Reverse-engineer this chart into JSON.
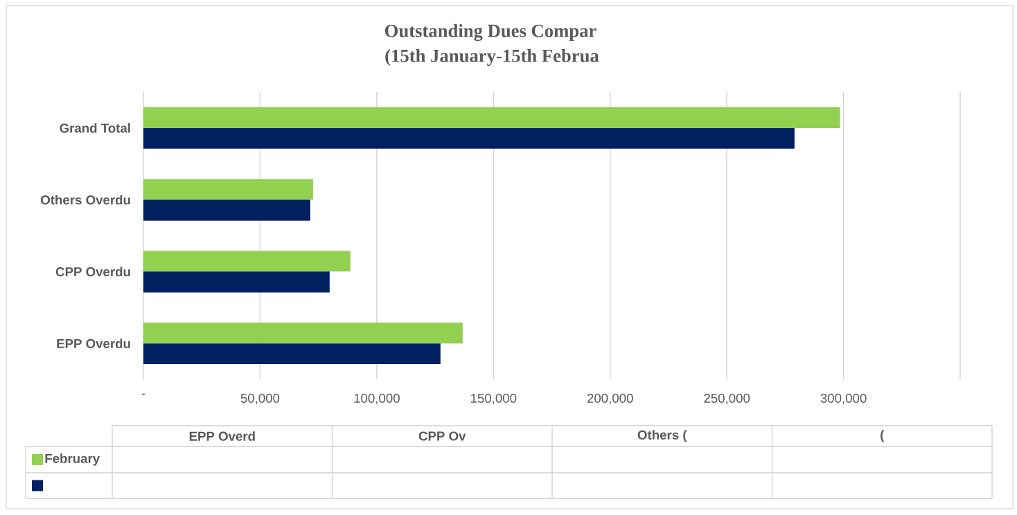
{
  "chart_data": {
    "type": "bar",
    "orientation": "horizontal",
    "title": "Outstanding Dues Compar",
    "subtitle": "(15th January-15th Februa",
    "categories": [
      "Grand Total",
      "Others Overdu",
      "CPP Overdu",
      "EPP Overdu"
    ],
    "series": [
      {
        "name": "February",
        "color": "#92d050",
        "values": [
          298500,
          72700,
          88700,
          136800
        ]
      },
      {
        "color": "#002060",
        "values": [
          279000,
          71500,
          79800,
          127300
        ]
      }
    ],
    "xlim": [
      0,
      350000
    ],
    "xticks": [
      {
        "value": 0,
        "label": "-"
      },
      {
        "value": 50000,
        "label": "50,000"
      },
      {
        "value": 100000,
        "label": "100,000"
      },
      {
        "value": 150000,
        "label": "150,000"
      },
      {
        "value": 200000,
        "label": "200,000"
      },
      {
        "value": 250000,
        "label": "250,000"
      },
      {
        "value": 300000,
        "label": "300,000"
      },
      {
        "value": 350000,
        "label": null
      }
    ],
    "grid": "x",
    "legend": "bottom",
    "annotations": [
      "EPP Overd",
      "CPP Ov",
      "Others (",
      "("
    ]
  }
}
